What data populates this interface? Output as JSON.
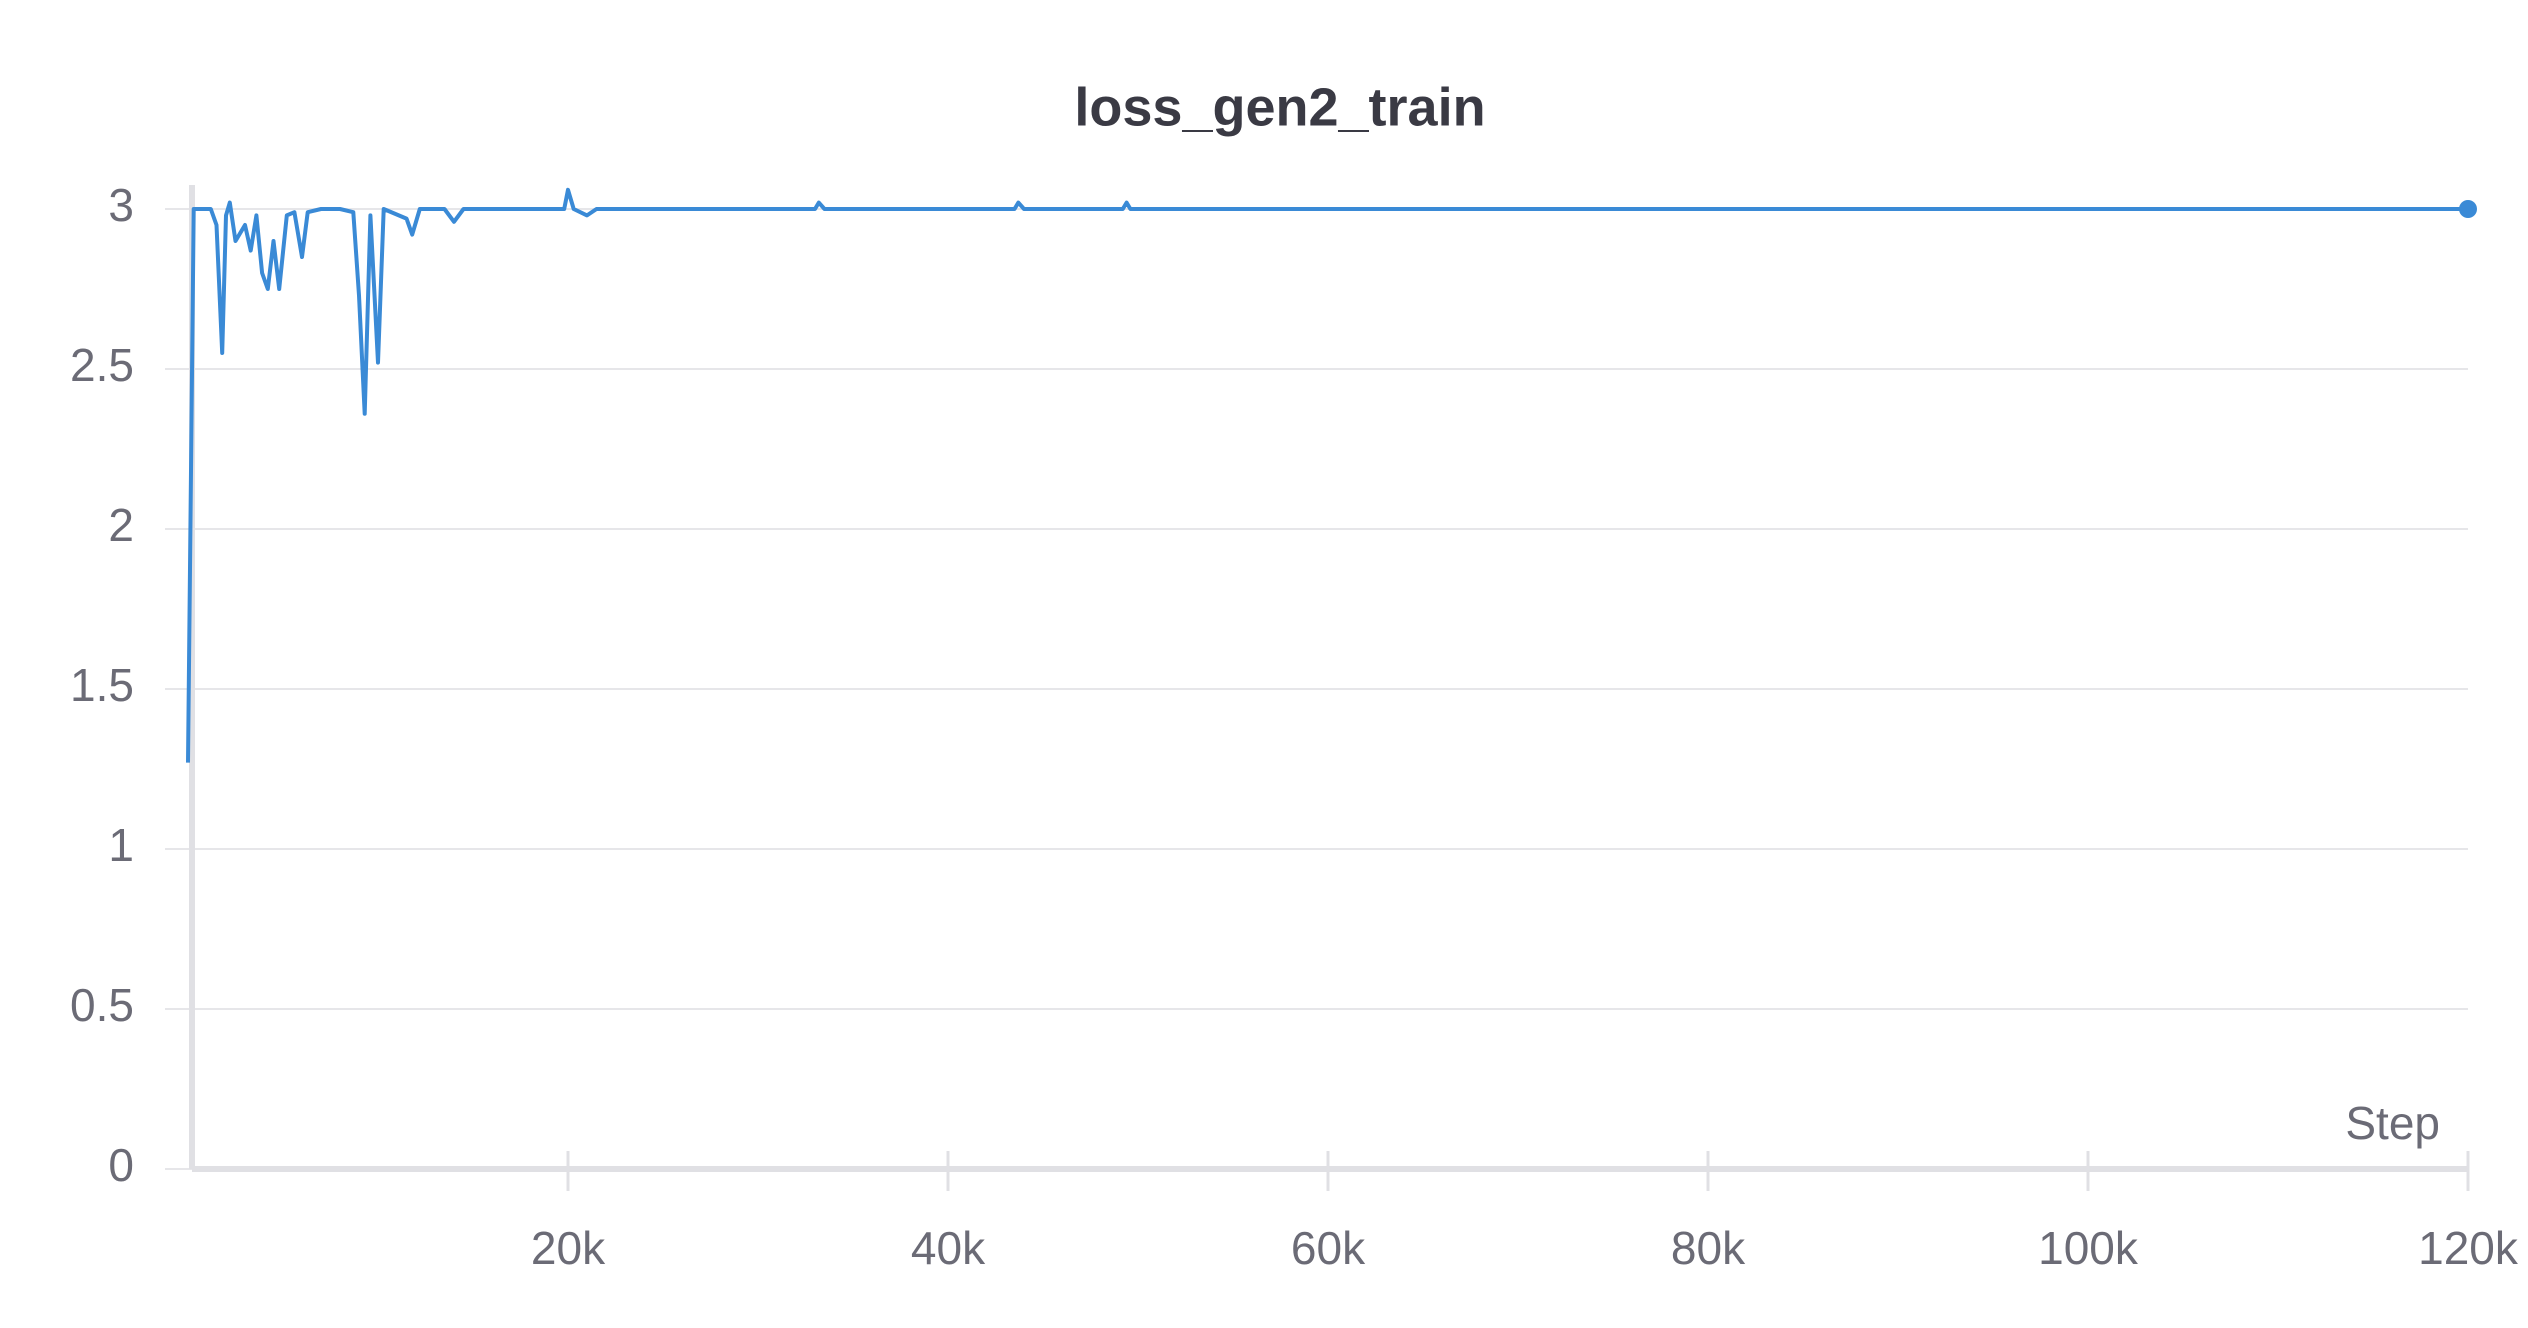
{
  "chart_data": {
    "type": "line",
    "title": "loss_gen2_train",
    "x_label": "Step",
    "x": [
      0,
      300,
      1200,
      1500,
      1800,
      2000,
      2200,
      2500,
      3000,
      3300,
      3600,
      3900,
      4200,
      4500,
      4800,
      5200,
      5600,
      6000,
      6300,
      7000,
      8000,
      8700,
      9000,
      9300,
      9600,
      10000,
      10300,
      11500,
      11800,
      12200,
      13500,
      14000,
      14500,
      16000,
      19800,
      20000,
      20300,
      21000,
      21500,
      33000,
      33200,
      33500,
      43500,
      43700,
      44000,
      49200,
      49400,
      49600,
      120000
    ],
    "series": [
      {
        "name": "loss_gen2_train",
        "color": "#3a8ad6",
        "values": [
          1.27,
          3.0,
          3.0,
          2.95,
          2.55,
          2.98,
          3.02,
          2.9,
          2.95,
          2.87,
          2.98,
          2.8,
          2.75,
          2.9,
          2.75,
          2.98,
          2.99,
          2.85,
          2.99,
          3.0,
          3.0,
          2.99,
          2.73,
          2.36,
          2.98,
          2.52,
          3.0,
          2.97,
          2.92,
          3.0,
          3.0,
          2.96,
          3.0,
          3.0,
          3.0,
          3.06,
          3.0,
          2.98,
          3.0,
          3.0,
          3.02,
          3.0,
          3.0,
          3.02,
          3.0,
          3.0,
          3.02,
          3.0,
          3.0
        ]
      }
    ],
    "xlim": [
      0,
      120000
    ],
    "xticks": [
      {
        "value": 20000,
        "label": "20k"
      },
      {
        "value": 40000,
        "label": "40k"
      },
      {
        "value": 60000,
        "label": "60k"
      },
      {
        "value": 80000,
        "label": "80k"
      },
      {
        "value": 100000,
        "label": "100k"
      },
      {
        "value": 120000,
        "label": "120k"
      }
    ],
    "ylim": [
      0,
      3.0
    ],
    "yticks": [
      0,
      0.5,
      1,
      1.5,
      2,
      2.5,
      3
    ],
    "grid": true
  }
}
